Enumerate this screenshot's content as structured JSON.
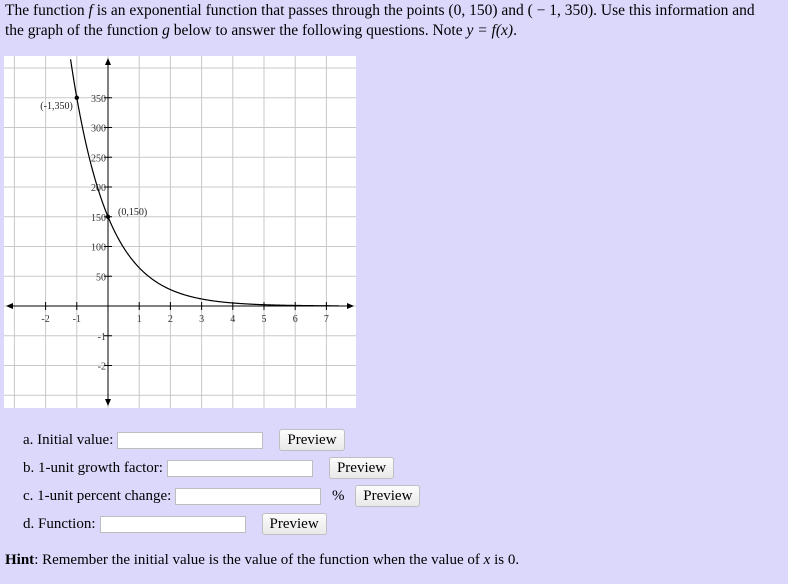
{
  "intro": {
    "part1": "The function ",
    "f": "f",
    "part2": " is an exponential function that passes through the points (0, 150) and ( − 1, 350). Use this information and",
    "part3": "the graph of the function ",
    "g": "g",
    "part4": " below to answer the following questions. Note ",
    "equation": "y = f(x)",
    "part5": "."
  },
  "chart_data": {
    "type": "line",
    "xlim": [
      -2.1,
      7.4
    ],
    "ylim": [
      -100,
      380
    ],
    "x_ticks": [
      "-2",
      "-1",
      "1",
      "2",
      "3",
      "4",
      "5",
      "6",
      "7"
    ],
    "y_ticks": [
      "350",
      "300",
      "250",
      "200",
      "150",
      "100",
      "50",
      "-1",
      "-2"
    ],
    "function": {
      "a": 150,
      "b": 0.4286
    },
    "points": [
      {
        "x": -1,
        "y": 350,
        "label": "(-1,350)"
      },
      {
        "x": 0,
        "y": 150,
        "label": "(0,150)"
      }
    ],
    "grid": true
  },
  "questions": [
    {
      "label": "a. Initial value:",
      "value": "",
      "unit": "",
      "button": "Preview"
    },
    {
      "label": "b. 1-unit growth factor:",
      "value": "",
      "unit": "",
      "button": "Preview"
    },
    {
      "label": "c. 1-unit percent change:",
      "value": "",
      "unit": "%",
      "button": "Preview"
    },
    {
      "label": "d. Function:",
      "value": "",
      "unit": "",
      "button": "Preview"
    }
  ],
  "hint": {
    "title": "Hint",
    "text": ": Remember the initial value is the value of the function when the value of ",
    "var": "x",
    "end": " is 0."
  }
}
